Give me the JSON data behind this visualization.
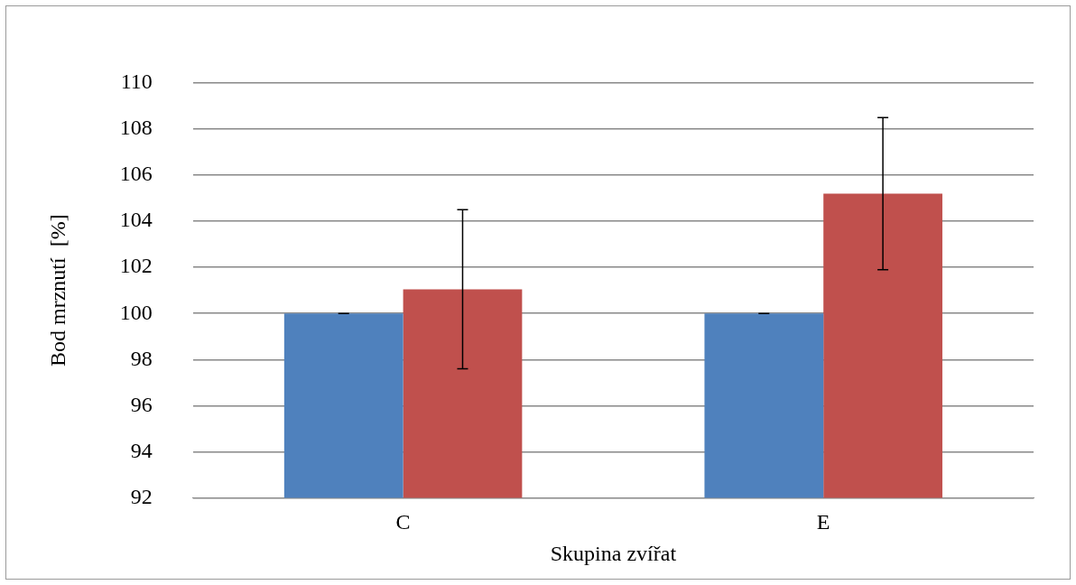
{
  "chart_data": {
    "type": "bar",
    "xlabel": "Skupina zvířat",
    "ylabel": "Bod mrznutí  [%]",
    "categories": [
      "C",
      "E"
    ],
    "series": [
      {
        "color": "#4f81bd",
        "values": [
          100,
          100
        ],
        "errors": [
          0,
          0
        ]
      },
      {
        "color": "#c0504d",
        "values": [
          101.05,
          105.2
        ],
        "errors": [
          3.45,
          3.3
        ]
      }
    ],
    "ylim": [
      92,
      110
    ],
    "yticks": [
      92,
      94,
      96,
      98,
      100,
      102,
      104,
      106,
      108,
      110
    ],
    "grid": "y",
    "legend": false
  }
}
